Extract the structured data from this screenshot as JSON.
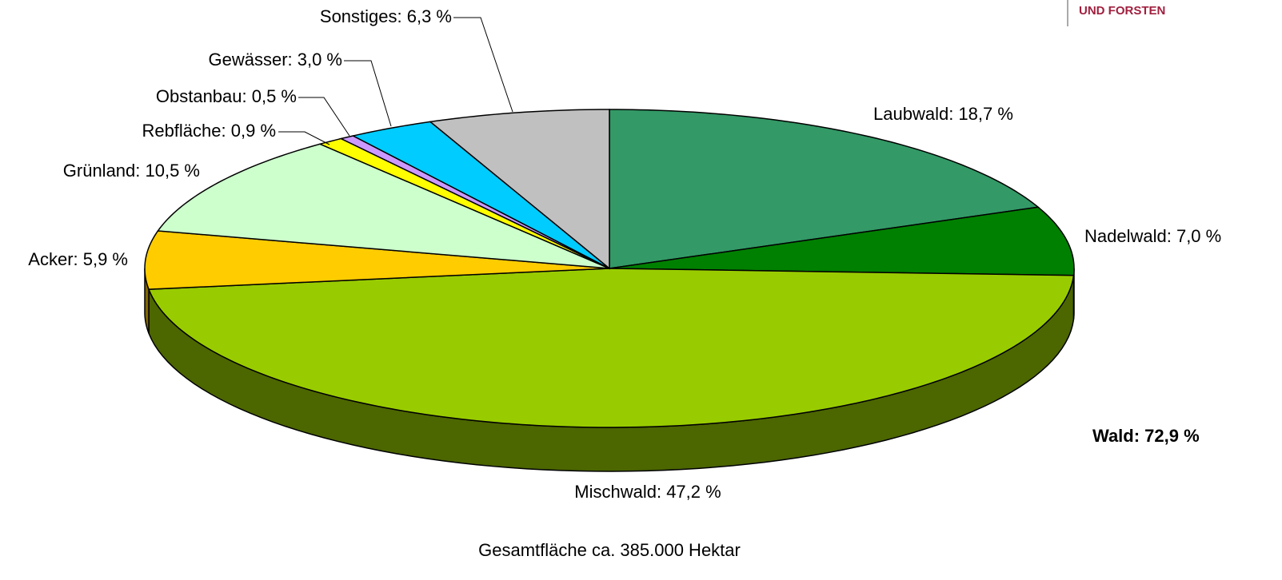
{
  "chart_data": {
    "type": "pie",
    "values": [
      18.7,
      7.0,
      47.2,
      5.9,
      10.5,
      0.9,
      0.5,
      3.0,
      6.3
    ],
    "value_labels": [
      "Laubwald: 18,7 %",
      "Nadelwald: 7,0 %",
      "Mischwald: 47,2 %",
      "Acker: 5,9 %",
      "Grünland: 10,5 %",
      "Rebfläche: 0,9 %",
      "Obstanbau: 0,5 %",
      "Gewässer: 3,0 %",
      "Sonstiges: 6,3 %"
    ],
    "colors": [
      "#339966",
      "#008000",
      "#99cc00",
      "#ffcc00",
      "#ccffcc",
      "#ffff00",
      "#cc99ff",
      "#00ccff",
      "#c0c0c0"
    ],
    "annotation": "Wald: 72,9 %",
    "footer": "Gesamtfläche ca. 385.000 Hektar",
    "logo": "UND FORSTEN"
  }
}
